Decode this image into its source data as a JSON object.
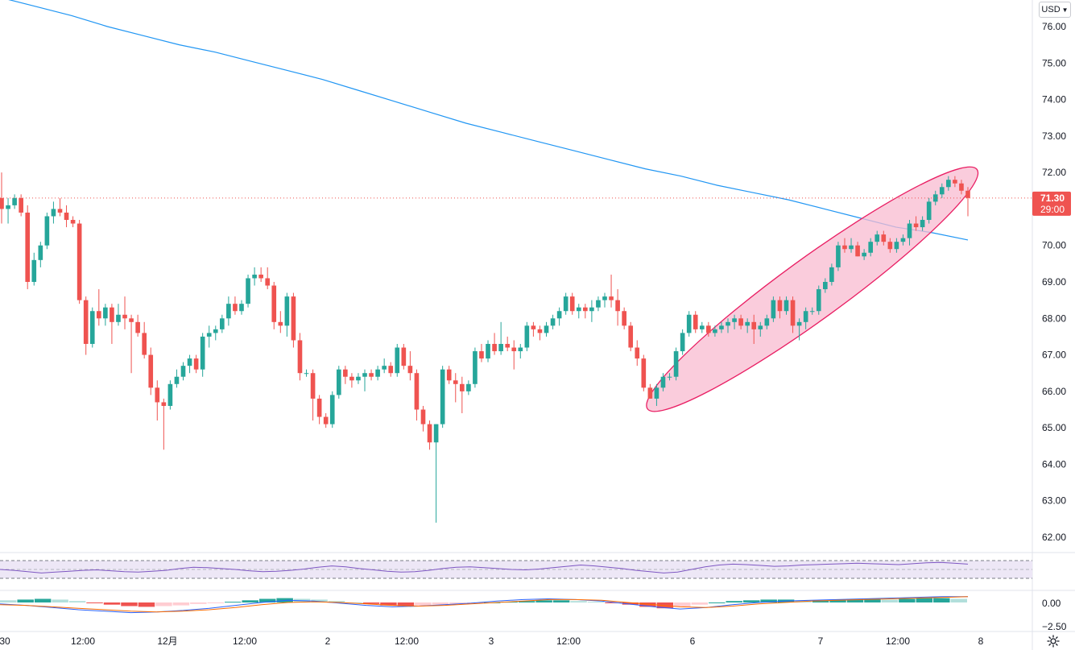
{
  "currency": {
    "label": "USD",
    "chevron": "chevron-down-icon"
  },
  "settings": {
    "icon": "gear-icon"
  },
  "colors": {
    "up": "#26a69a",
    "down": "#ef5350",
    "ma": "#2196f3",
    "highlight_fill": "#f8bbd0",
    "highlight_stroke": "#e91e63",
    "rsi": "#7e57c2",
    "rsi_band": "#ede7f6",
    "macd": "#2962ff",
    "signal": "#ff6d00"
  },
  "chart_data": {
    "type": "candlestick",
    "title": "",
    "y_ticks": [
      "76.00",
      "75.00",
      "74.00",
      "73.00",
      "72.00",
      "71.00",
      "70.00",
      "69.00",
      "68.00",
      "67.00",
      "66.00",
      "65.00",
      "64.00",
      "63.00",
      "62.00"
    ],
    "ylim": [
      61.5,
      76.7
    ],
    "x_ticks": [
      "30",
      "12:00",
      "12月",
      "12:00",
      "2",
      "12:00",
      "3",
      "12:00",
      "6",
      "7",
      "12:00",
      "8"
    ],
    "current_price": {
      "value": 71.3,
      "label": "71.30",
      "countdown": "29:00"
    },
    "candles": [
      [
        71.3,
        72.0,
        70.6,
        71.0
      ],
      [
        71.0,
        71.3,
        70.6,
        71.1
      ],
      [
        71.1,
        71.4,
        71.0,
        71.3
      ],
      [
        71.3,
        71.4,
        70.8,
        70.9
      ],
      [
        70.9,
        71.1,
        68.8,
        69.0
      ],
      [
        69.0,
        69.8,
        68.9,
        69.6
      ],
      [
        69.6,
        70.1,
        69.4,
        70.0
      ],
      [
        70.0,
        70.9,
        69.9,
        70.8
      ],
      [
        70.8,
        71.2,
        70.6,
        71.0
      ],
      [
        71.0,
        71.3,
        70.8,
        70.9
      ],
      [
        70.9,
        71.1,
        70.5,
        70.7
      ],
      [
        70.7,
        70.8,
        70.5,
        70.6
      ],
      [
        70.6,
        70.7,
        68.4,
        68.5
      ],
      [
        68.5,
        68.6,
        67.0,
        67.3
      ],
      [
        67.3,
        68.3,
        67.2,
        68.2
      ],
      [
        68.2,
        68.8,
        67.8,
        68.0
      ],
      [
        68.0,
        68.4,
        67.8,
        68.3
      ],
      [
        68.3,
        68.4,
        67.3,
        67.9
      ],
      [
        67.9,
        68.4,
        67.8,
        68.1
      ],
      [
        68.1,
        68.6,
        67.7,
        68.0
      ],
      [
        68.0,
        68.1,
        66.5,
        67.9
      ],
      [
        67.9,
        68.1,
        67.5,
        67.6
      ],
      [
        67.6,
        67.9,
        66.9,
        67.0
      ],
      [
        67.0,
        67.2,
        65.9,
        66.1
      ],
      [
        66.1,
        66.3,
        65.2,
        65.7
      ],
      [
        65.7,
        65.8,
        64.4,
        65.6
      ],
      [
        65.6,
        66.3,
        65.5,
        66.2
      ],
      [
        66.2,
        66.6,
        66.1,
        66.4
      ],
      [
        66.4,
        66.8,
        66.3,
        66.7
      ],
      [
        66.7,
        67.0,
        66.5,
        66.9
      ],
      [
        66.9,
        67.0,
        66.5,
        66.6
      ],
      [
        66.6,
        67.6,
        66.4,
        67.5
      ],
      [
        67.5,
        67.8,
        67.2,
        67.6
      ],
      [
        67.6,
        67.8,
        67.4,
        67.7
      ],
      [
        67.7,
        68.1,
        67.6,
        68.0
      ],
      [
        68.0,
        68.6,
        67.8,
        68.4
      ],
      [
        68.4,
        68.6,
        68.1,
        68.2
      ],
      [
        68.2,
        68.5,
        68.1,
        68.4
      ],
      [
        68.4,
        69.2,
        68.3,
        69.1
      ],
      [
        69.1,
        69.4,
        68.9,
        69.2
      ],
      [
        69.2,
        69.4,
        69.0,
        69.1
      ],
      [
        69.1,
        69.4,
        68.8,
        68.9
      ],
      [
        68.9,
        69.0,
        67.7,
        67.9
      ],
      [
        67.9,
        68.2,
        67.6,
        67.8
      ],
      [
        67.8,
        68.7,
        67.5,
        68.6
      ],
      [
        68.6,
        68.7,
        67.2,
        67.4
      ],
      [
        67.4,
        67.6,
        66.3,
        66.5
      ],
      [
        66.5,
        66.6,
        66.4,
        66.5
      ],
      [
        66.5,
        66.6,
        65.2,
        65.8
      ],
      [
        65.8,
        65.9,
        65.1,
        65.3
      ],
      [
        65.3,
        65.4,
        65.0,
        65.1
      ],
      [
        65.1,
        66.0,
        65.0,
        65.9
      ],
      [
        65.9,
        66.7,
        65.8,
        66.6
      ],
      [
        66.6,
        66.7,
        66.2,
        66.4
      ],
      [
        66.4,
        66.5,
        66.1,
        66.3
      ],
      [
        66.3,
        66.5,
        66.2,
        66.4
      ],
      [
        66.4,
        66.6,
        66.0,
        66.5
      ],
      [
        66.5,
        66.6,
        66.3,
        66.4
      ],
      [
        66.4,
        66.7,
        66.3,
        66.6
      ],
      [
        66.6,
        66.9,
        66.5,
        66.7
      ],
      [
        66.7,
        66.8,
        66.4,
        66.5
      ],
      [
        66.5,
        67.3,
        66.4,
        67.2
      ],
      [
        67.2,
        67.3,
        66.6,
        66.7
      ],
      [
        66.7,
        67.1,
        66.3,
        66.5
      ],
      [
        66.5,
        66.6,
        65.2,
        65.5
      ],
      [
        65.5,
        65.6,
        64.9,
        65.1
      ],
      [
        65.1,
        65.2,
        64.4,
        64.6
      ],
      [
        64.6,
        65.1,
        62.4,
        65.1
      ],
      [
        65.1,
        66.7,
        65.0,
        66.6
      ],
      [
        66.6,
        66.7,
        66.2,
        66.3
      ],
      [
        66.3,
        66.5,
        65.7,
        66.2
      ],
      [
        66.2,
        66.4,
        65.4,
        66.0
      ],
      [
        66.0,
        66.3,
        65.9,
        66.2
      ],
      [
        66.2,
        67.2,
        66.1,
        67.1
      ],
      [
        67.1,
        67.3,
        66.8,
        66.9
      ],
      [
        66.9,
        67.4,
        66.8,
        67.3
      ],
      [
        67.3,
        67.6,
        67.0,
        67.1
      ],
      [
        67.1,
        67.9,
        67.0,
        67.3
      ],
      [
        67.3,
        67.5,
        67.1,
        67.2
      ],
      [
        67.2,
        67.4,
        66.6,
        67.1
      ],
      [
        67.1,
        67.3,
        66.9,
        67.2
      ],
      [
        67.2,
        67.9,
        67.1,
        67.8
      ],
      [
        67.8,
        67.9,
        67.5,
        67.7
      ],
      [
        67.7,
        67.8,
        67.4,
        67.6
      ],
      [
        67.6,
        67.9,
        67.5,
        67.8
      ],
      [
        67.8,
        68.1,
        67.7,
        68.0
      ],
      [
        68.0,
        68.3,
        67.8,
        68.2
      ],
      [
        68.2,
        68.7,
        68.1,
        68.6
      ],
      [
        68.6,
        68.7,
        68.1,
        68.2
      ],
      [
        68.2,
        68.4,
        68.0,
        68.3
      ],
      [
        68.3,
        68.4,
        68.0,
        68.2
      ],
      [
        68.2,
        68.5,
        67.9,
        68.3
      ],
      [
        68.3,
        68.6,
        68.2,
        68.5
      ],
      [
        68.5,
        68.7,
        68.3,
        68.6
      ],
      [
        68.6,
        69.2,
        68.3,
        68.5
      ],
      [
        68.5,
        68.8,
        67.8,
        68.2
      ],
      [
        68.2,
        68.3,
        67.7,
        67.8
      ],
      [
        67.8,
        67.9,
        67.1,
        67.2
      ],
      [
        67.2,
        67.4,
        66.7,
        66.9
      ],
      [
        66.9,
        67.0,
        66.0,
        66.1
      ],
      [
        66.1,
        66.2,
        65.8,
        65.8
      ],
      [
        65.8,
        66.2,
        65.6,
        66.1
      ],
      [
        66.1,
        66.5,
        66.0,
        66.4
      ],
      [
        66.4,
        66.5,
        66.3,
        66.4
      ],
      [
        66.4,
        67.2,
        66.3,
        67.1
      ],
      [
        67.1,
        67.7,
        67.0,
        67.6
      ],
      [
        67.6,
        68.2,
        67.5,
        68.1
      ],
      [
        68.1,
        68.2,
        67.6,
        67.7
      ],
      [
        67.7,
        67.9,
        67.6,
        67.8
      ],
      [
        67.8,
        67.9,
        67.5,
        67.6
      ],
      [
        67.6,
        67.8,
        67.5,
        67.7
      ],
      [
        67.7,
        67.9,
        67.6,
        67.8
      ],
      [
        67.8,
        68.0,
        67.6,
        67.9
      ],
      [
        67.9,
        68.1,
        67.7,
        68.0
      ],
      [
        68.0,
        68.1,
        67.7,
        67.8
      ],
      [
        67.8,
        68.0,
        67.6,
        67.9
      ],
      [
        67.9,
        68.1,
        67.3,
        67.7
      ],
      [
        67.7,
        67.9,
        67.5,
        67.8
      ],
      [
        67.8,
        68.1,
        67.7,
        68.0
      ],
      [
        68.0,
        68.6,
        67.9,
        68.5
      ],
      [
        68.5,
        68.6,
        68.0,
        68.2
      ],
      [
        68.2,
        68.6,
        68.1,
        68.5
      ],
      [
        68.5,
        68.6,
        67.6,
        67.8
      ],
      [
        67.8,
        68.0,
        67.4,
        67.9
      ],
      [
        67.9,
        68.3,
        67.7,
        68.2
      ],
      [
        68.2,
        68.3,
        68.1,
        68.2
      ],
      [
        68.2,
        68.9,
        68.1,
        68.8
      ],
      [
        68.8,
        69.1,
        68.7,
        69.0
      ],
      [
        69.0,
        69.5,
        68.9,
        69.4
      ],
      [
        69.4,
        70.1,
        69.3,
        70.0
      ],
      [
        70.0,
        70.2,
        69.8,
        69.9
      ],
      [
        69.9,
        70.2,
        69.8,
        70.0
      ],
      [
        70.0,
        70.1,
        69.7,
        69.7
      ],
      [
        69.7,
        69.9,
        69.6,
        69.8
      ],
      [
        69.8,
        70.2,
        69.7,
        70.1
      ],
      [
        70.1,
        70.4,
        70.0,
        70.3
      ],
      [
        70.3,
        70.4,
        70.0,
        70.1
      ],
      [
        70.1,
        70.2,
        69.8,
        69.9
      ],
      [
        69.9,
        70.2,
        69.8,
        70.1
      ],
      [
        70.1,
        70.3,
        70.0,
        70.2
      ],
      [
        70.2,
        70.7,
        70.0,
        70.6
      ],
      [
        70.6,
        70.8,
        70.4,
        70.5
      ],
      [
        70.5,
        70.8,
        70.4,
        70.7
      ],
      [
        70.7,
        71.3,
        70.6,
        71.2
      ],
      [
        71.2,
        71.5,
        71.1,
        71.4
      ],
      [
        71.4,
        71.7,
        71.3,
        71.6
      ],
      [
        71.6,
        71.9,
        71.5,
        71.8
      ],
      [
        71.8,
        71.9,
        71.6,
        71.7
      ],
      [
        71.7,
        71.8,
        71.4,
        71.5
      ],
      [
        71.5,
        71.6,
        70.8,
        71.3
      ]
    ],
    "ma_series": [
      [
        0,
        76.8
      ],
      [
        0.06,
        76.55
      ],
      [
        0.12,
        76.3
      ],
      [
        0.18,
        76.0
      ],
      [
        0.24,
        75.75
      ],
      [
        0.3,
        75.5
      ],
      [
        0.36,
        75.3
      ],
      [
        0.42,
        75.05
      ],
      [
        0.48,
        74.8
      ],
      [
        0.54,
        74.55
      ],
      [
        0.6,
        74.25
      ],
      [
        0.66,
        73.95
      ],
      [
        0.72,
        73.65
      ],
      [
        0.78,
        73.35
      ],
      [
        0.84,
        73.1
      ],
      [
        0.9,
        72.85
      ],
      [
        0.96,
        72.6
      ],
      [
        1.02,
        72.35
      ],
      [
        1.08,
        72.1
      ],
      [
        1.14,
        71.9
      ],
      [
        1.2,
        71.65
      ],
      [
        1.26,
        71.45
      ],
      [
        1.32,
        71.25
      ],
      [
        1.38,
        71.0
      ],
      [
        1.44,
        70.75
      ],
      [
        1.5,
        70.5
      ],
      [
        1.56,
        70.35
      ],
      [
        1.62,
        70.15
      ]
    ],
    "rsi": {
      "upper": 70,
      "lower": 30,
      "values": [
        50,
        48,
        45,
        42,
        44,
        46,
        48,
        49,
        47,
        45,
        44,
        46,
        48,
        52,
        55,
        54,
        52,
        50,
        47,
        45,
        46,
        48,
        51,
        55,
        58,
        56,
        52,
        49,
        46,
        44,
        45,
        48,
        52,
        55,
        56,
        54,
        52,
        50,
        49,
        51,
        54,
        57,
        60,
        58,
        55,
        52,
        48,
        45,
        42,
        44,
        50,
        56,
        60,
        62,
        61,
        59,
        57,
        58,
        60,
        61,
        62,
        63,
        64,
        63,
        62,
        61,
        63,
        65,
        66,
        64,
        62
      ]
    },
    "macd": {
      "zero_label": "0.00",
      "minus_label": "−2.50",
      "hist": [
        0.3,
        0.4,
        0.5,
        0.4,
        0.2,
        -0.1,
        -0.3,
        -0.5,
        -0.6,
        -0.5,
        -0.4,
        -0.2,
        -0.1,
        0.1,
        0.3,
        0.5,
        0.6,
        0.5,
        0.4,
        0.2,
        0.0,
        -0.2,
        -0.4,
        -0.5,
        -0.4,
        -0.3,
        -0.2,
        -0.1,
        0.0,
        0.1,
        0.2,
        0.3,
        0.3,
        0.2,
        0.1,
        -0.1,
        -0.3,
        -0.6,
        -0.8,
        -0.6,
        -0.3,
        0.0,
        0.2,
        0.3,
        0.4,
        0.4,
        0.3,
        0.3,
        0.4,
        0.5,
        0.5,
        0.4,
        0.5,
        0.6,
        0.6,
        0.5
      ],
      "macd_line": [
        -0.2,
        -0.4,
        -0.7,
        -1.0,
        -1.2,
        -1.4,
        -1.3,
        -1.1,
        -0.8,
        -0.4,
        0.0,
        0.3,
        0.2,
        -0.1,
        -0.4,
        -0.6,
        -0.5,
        -0.3,
        -0.1,
        0.2,
        0.4,
        0.5,
        0.4,
        0.2,
        -0.2,
        -0.6,
        -0.9,
        -0.7,
        -0.3,
        0.0,
        0.2,
        0.3,
        0.4,
        0.5,
        0.6,
        0.7,
        0.8,
        0.8
      ],
      "signal_line": [
        -0.3,
        -0.4,
        -0.6,
        -0.8,
        -1.0,
        -1.2,
        -1.3,
        -1.2,
        -1.0,
        -0.7,
        -0.3,
        0.0,
        0.1,
        0.0,
        -0.2,
        -0.4,
        -0.5,
        -0.4,
        -0.2,
        0.0,
        0.2,
        0.4,
        0.4,
        0.3,
        0.0,
        -0.3,
        -0.6,
        -0.7,
        -0.5,
        -0.2,
        0.0,
        0.2,
        0.3,
        0.4,
        0.5,
        0.6,
        0.7,
        0.8
      ]
    }
  }
}
